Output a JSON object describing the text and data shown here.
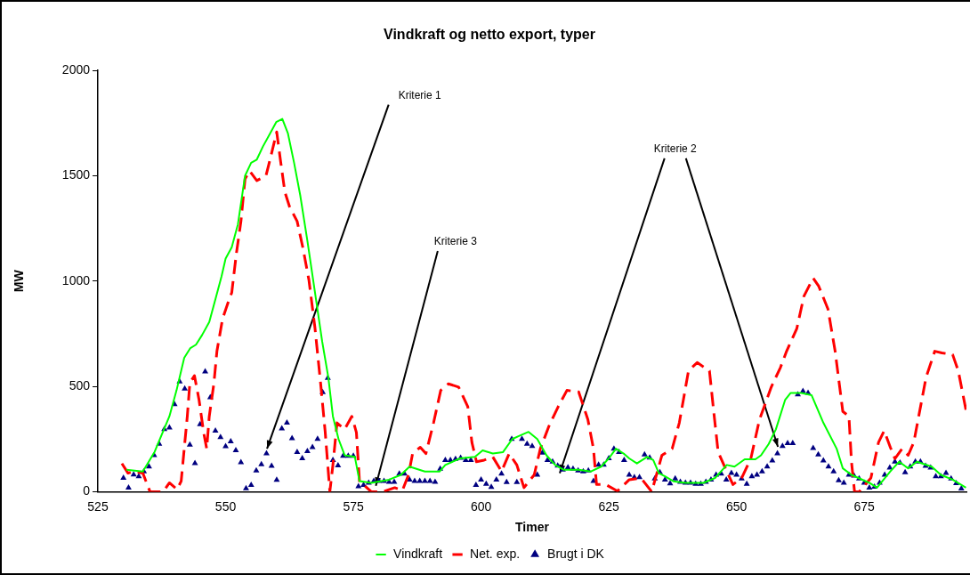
{
  "chart_data": {
    "type": "line",
    "title": "Vindkraft og netto export, typer",
    "xlabel": "Timer",
    "ylabel": "MW",
    "xlim": [
      525,
      695
    ],
    "xticks": [
      525,
      550,
      575,
      600,
      625,
      650,
      675
    ],
    "ylim": [
      0,
      2000
    ],
    "yticks": [
      0,
      500,
      1000,
      1500,
      2000
    ],
    "grid": false,
    "legend": "bottom",
    "series": [
      {
        "name": "Vindkraft",
        "color": "#00ff00",
        "line_style": "solid",
        "x": [
          530.6,
          533.8,
          536.1,
          539.0,
          540.4,
          541.9,
          543.1,
          544.2,
          545.4,
          546.8,
          548.0,
          549.2,
          550.0,
          551.2,
          552.4,
          553.8,
          555.0,
          556.1,
          557.3,
          558.7,
          559.9,
          561.1,
          562.2,
          563.4,
          564.6,
          566.0,
          567.5,
          568.9,
          570.1,
          571.0,
          572.1,
          573.3,
          575.3,
          576.2,
          578.5,
          582,
          584.3,
          586,
          589,
          591.9,
          593,
          595.9,
          598.8,
          600.3,
          602.3,
          604.3,
          606.1,
          607.5,
          609.3,
          611,
          612.8,
          614.5,
          616.2,
          619.1,
          621.5,
          623.5,
          625,
          626.4,
          627.9,
          629,
          630.5,
          632.5,
          633.7,
          634.8,
          636,
          637.7,
          640,
          643.5,
          645.8,
          648.1,
          649.6,
          651.6,
          653.7,
          654.8,
          656.3,
          657.7,
          659.5,
          660.6,
          662.7,
          664.7,
          667,
          669.6,
          670.8,
          672.5,
          676,
          677.5,
          680.1,
          681.8,
          683.6,
          685.3,
          688.2,
          690,
          692.3,
          694.9
        ],
        "values": [
          104,
          96,
          189,
          358,
          482,
          636,
          682,
          698,
          744,
          806,
          914,
          1022,
          1107,
          1161,
          1269,
          1500,
          1562,
          1577,
          1639,
          1701,
          1755,
          1770,
          1701,
          1562,
          1408,
          1192,
          945,
          713,
          543,
          358,
          250,
          173,
          165,
          50,
          42,
          57,
          80,
          119,
          96,
          96,
          127,
          158,
          165,
          196,
          181,
          188,
          250,
          265,
          284,
          250,
          173,
          127,
          104,
          104,
          96,
          119,
          158,
          204,
          181,
          158,
          134,
          165,
          150,
          88,
          73,
          49,
          42,
          42,
          65,
          127,
          119,
          154,
          154,
          173,
          227,
          296,
          435,
          469,
          469,
          458,
          327,
          204,
          111,
          80,
          42,
          19,
          96,
          142,
          111,
          142,
          119,
          80,
          57,
          19
        ]
      },
      {
        "name": "Net. exp.",
        "color": "#ff0000",
        "line_style": "dashed",
        "x": [
          529.7,
          530.9,
          532,
          533.8,
          535.2,
          537.8,
          539,
          540.5,
          541.3,
          541.9,
          542.5,
          543,
          543.9,
          544.8,
          545.7,
          546.3,
          546.8,
          547.7,
          548.3,
          549.4,
          550.6,
          551.2,
          552.1,
          553,
          553.8,
          554.7,
          556.1,
          557.9,
          558.7,
          560,
          560.8,
          561.6,
          562.5,
          564,
          565.1,
          566.3,
          567.5,
          568.6,
          569.5,
          570.4,
          571,
          571.8,
          573.3,
          574.7,
          575.6,
          576.2,
          578.5,
          580.8,
          583.1,
          584.6,
          585.8,
          586.6,
          588.1,
          589.2,
          590.7,
          592.1,
          593.6,
          595.6,
          597.4,
          598.2,
          599.1,
          600.6,
          602.3,
          604,
          605.5,
          607,
          608.4,
          610.4,
          611.6,
          613.3,
          615.1,
          616.8,
          619.1,
          620.9,
          622,
          622.6,
          624.4,
          626.7,
          629,
          631.3,
          633.4,
          635.4,
          637.4,
          638.8,
          640.6,
          642.3,
          644.7,
          645.5,
          646.4,
          648.1,
          649.3,
          651,
          652.8,
          654.5,
          656.8,
          658.6,
          659.8,
          661.8,
          663.2,
          665,
          666.1,
          667.9,
          669.3,
          670.8,
          672,
          672.5,
          673.1,
          674,
          676.3,
          677.8,
          678.9,
          680.1,
          681,
          682.4,
          683.6,
          684.7,
          685.9,
          687.1,
          688.8,
          690.2,
          692.3,
          693.4,
          694.9
        ],
        "values": [
          134,
          88,
          96,
          88,
          0,
          0,
          42,
          11,
          50,
          204,
          358,
          517,
          551,
          436,
          281,
          204,
          358,
          513,
          667,
          821,
          906,
          945,
          1130,
          1284,
          1485,
          1523,
          1477,
          1500,
          1577,
          1708,
          1562,
          1423,
          1354,
          1284,
          1161,
          1006,
          775,
          513,
          281,
          0,
          127,
          327,
          296,
          358,
          281,
          50,
          0,
          0,
          19,
          6,
          80,
          181,
          211,
          181,
          327,
          481,
          512,
          497,
          404,
          235,
          142,
          150,
          165,
          96,
          181,
          127,
          19,
          80,
          204,
          312,
          404,
          481,
          474,
          343,
          204,
          34,
          34,
          3,
          57,
          65,
          0,
          173,
          204,
          327,
          574,
          613,
          574,
          389,
          188,
          96,
          34,
          65,
          157,
          343,
          497,
          590,
          667,
          775,
          929,
          1014,
          975,
          867,
          667,
          381,
          358,
          142,
          0,
          0,
          65,
          235,
          289,
          211,
          157,
          204,
          173,
          235,
          389,
          543,
          667,
          659,
          651,
          574,
          389
        ]
      },
      {
        "name": "Brugt i DK",
        "type": "scatter",
        "color": "#000080",
        "marker": "triangle",
        "x": [
          530,
          531,
          532,
          533,
          534,
          535,
          536,
          537,
          538,
          539,
          540,
          541,
          542,
          543,
          544,
          545,
          546,
          547,
          548,
          549,
          550,
          551,
          552,
          553,
          554,
          555,
          556,
          557,
          558,
          559,
          560,
          561,
          562,
          563,
          564,
          565,
          566,
          567,
          568,
          569,
          570,
          571,
          572,
          573,
          574,
          575,
          576,
          577,
          578,
          579,
          580,
          581,
          582,
          583,
          584,
          585,
          586,
          587,
          588,
          589,
          590,
          591,
          592,
          593,
          594,
          595,
          596,
          597,
          598,
          599,
          600,
          601,
          602,
          603,
          604,
          605,
          606,
          607,
          608,
          609,
          610,
          611,
          612,
          613,
          614,
          615,
          616,
          617,
          618,
          619,
          620,
          621,
          622,
          623,
          624,
          625,
          626,
          627,
          628,
          629,
          630,
          631,
          632,
          633,
          634,
          635,
          636,
          637,
          638,
          639,
          640,
          641,
          642,
          643,
          644,
          645,
          646,
          647,
          648,
          649,
          650,
          651,
          652,
          653,
          654,
          655,
          656,
          657,
          658,
          659,
          660,
          661,
          662,
          663,
          664,
          665,
          666,
          667,
          668,
          669,
          670,
          671,
          672,
          673,
          674,
          675,
          676,
          677,
          678,
          679,
          680,
          681,
          682,
          683,
          684,
          685,
          686,
          687,
          688,
          689,
          690,
          691,
          692,
          693,
          694
        ],
        "values": [
          65,
          19,
          81,
          73,
          96,
          119,
          173,
          227,
          296,
          304,
          415,
          523,
          489,
          223,
          135,
          320,
          570,
          448,
          289,
          258,
          215,
          238,
          196,
          139,
          15,
          31,
          100,
          130,
          181,
          122,
          56,
          300,
          327,
          253,
          188,
          158,
          192,
          211,
          250,
          472,
          540,
          150,
          124,
          170,
          170,
          170,
          25,
          31,
          42,
          50,
          50,
          50,
          46,
          46,
          85,
          85,
          57,
          50,
          50,
          50,
          50,
          46,
          108,
          150,
          150,
          155,
          160,
          150,
          150,
          31,
          57,
          37,
          22,
          57,
          85,
          45,
          250,
          45,
          250,
          227,
          216,
          80,
          185,
          150,
          142,
          123,
          104,
          115,
          108,
          100,
          96,
          100,
          50,
          127,
          127,
          158,
          204,
          188,
          150,
          80,
          68,
          68,
          176,
          161,
          62,
          91,
          57,
          39,
          62,
          46,
          42,
          42,
          37,
          37,
          46,
          57,
          80,
          85,
          57,
          88,
          80,
          62,
          37,
          73,
          80,
          96,
          119,
          147,
          181,
          216,
          230,
          230,
          461,
          477,
          469,
          207,
          176,
          147,
          119,
          96,
          53,
          42,
          80,
          76,
          62,
          42,
          19,
          23,
          42,
          80,
          114,
          142,
          137,
          91,
          119,
          142,
          142,
          122,
          114,
          73,
          73,
          88,
          62,
          40,
          14
        ]
      }
    ],
    "annotations": [
      {
        "text": "Kriterie 1",
        "x": 558.1,
        "y": 204
      },
      {
        "text": "Kriterie 3",
        "x": 579.4,
        "y": 28
      },
      {
        "text": "Kriterie 2",
        "x": 615.4,
        "y": 88
      }
    ]
  }
}
